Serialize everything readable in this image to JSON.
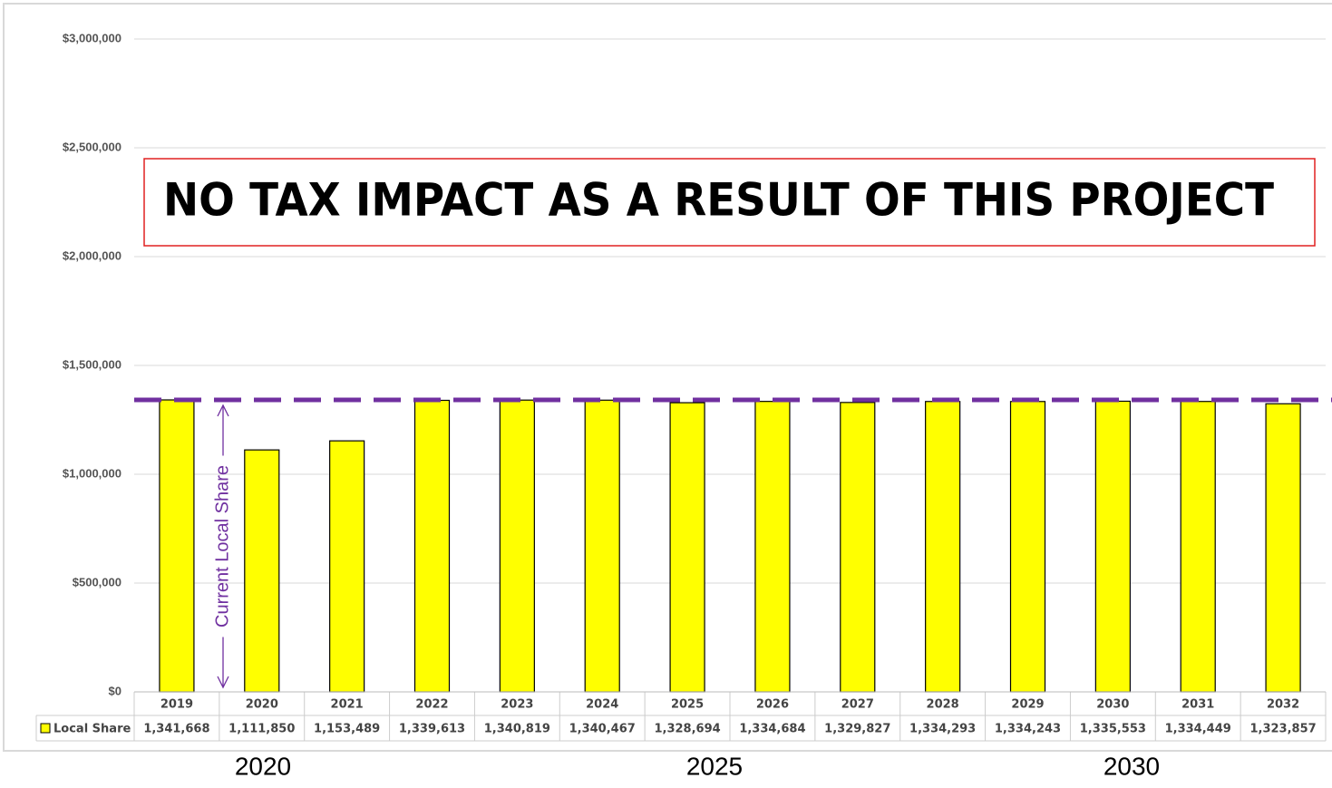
{
  "chart_data": {
    "type": "bar",
    "annotation": "NO TAX IMPACT AS A RESULT OF THIS PROJECT",
    "series": [
      {
        "name": "Local Share",
        "color": "#ffff00",
        "values": [
          1341668,
          1111850,
          1153489,
          1339613,
          1340819,
          1340467,
          1328694,
          1334684,
          1329827,
          1334293,
          1334243,
          1335553,
          1334449,
          1323857
        ],
        "value_labels": [
          "1,341,668",
          "1,111,850",
          "1,153,489",
          "1,339,613",
          "1,340,819",
          "1,340,467",
          "1,328,694",
          "1,334,684",
          "1,329,827",
          "1,334,293",
          "1,334,243",
          "1,335,553",
          "1,334,449",
          "1,323,857"
        ]
      }
    ],
    "categories": [
      "2019",
      "2020",
      "2021",
      "2022",
      "2023",
      "2024",
      "2025",
      "2026",
      "2027",
      "2028",
      "2029",
      "2030",
      "2031",
      "2032"
    ],
    "ylim": [
      0,
      3000000
    ],
    "yticks": [
      {
        "value": 0,
        "label": "$0"
      },
      {
        "value": 500000,
        "label": "$500,000"
      },
      {
        "value": 1000000,
        "label": "$1,000,000"
      },
      {
        "value": 1500000,
        "label": "$1,500,000"
      },
      {
        "value": 2000000,
        "label": "$2,000,000"
      },
      {
        "value": 2500000,
        "label": "$2,500,000"
      },
      {
        "value": 3000000,
        "label": "$3,000,000"
      }
    ],
    "grid": true,
    "reference_line": {
      "value": 1341668,
      "label": "Current Local Share",
      "color": "#7030a0"
    },
    "footer_labels": [
      "2020",
      "2025",
      "2030"
    ]
  }
}
